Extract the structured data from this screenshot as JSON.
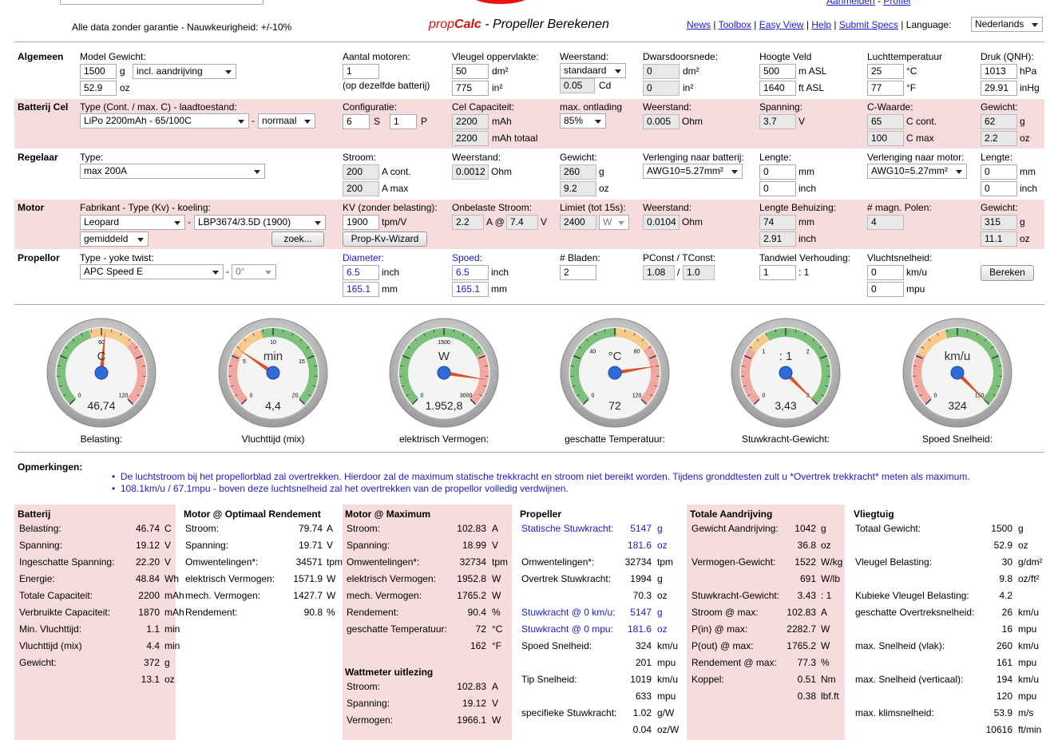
{
  "header": {
    "disclaimer": "Alle data zonder garantie - Nauwkeurigheid: +/-10%",
    "brand_prop": "prop",
    "brand_calc": "Calc",
    "brand_sub": " - Propeller Berekenen",
    "nav": [
      "News",
      "Toolbox",
      "Easy View",
      "Help",
      "Submit Specs"
    ],
    "language_label": "Language:",
    "language": "Nederlands",
    "top_links": [
      "Aanmelden",
      "Profiel"
    ],
    "top_sep": " - "
  },
  "rows": {
    "algemeen": {
      "title": "Algemeen",
      "model_gewicht_label": "Model Gewicht:",
      "gewicht_g": "1500",
      "unit_g": "g",
      "incl_select": "incl. aandrijving",
      "gewicht_oz": "52.9",
      "unit_oz": "oz",
      "aantal_motoren_label": "Aantal motoren:",
      "aantal_motoren": "1",
      "aantal_note": "(op dezelfde batterij)",
      "vleugel_label": "Vleugel oppervlakte:",
      "vleugel_dm": "50",
      "unit_dm2": "dm²",
      "vleugel_in": "775",
      "unit_in2": "in²",
      "weerstand_label": "Weerstand:",
      "weerstand_select": "standaard",
      "cd": "0.05",
      "unit_cd": "Cd",
      "dwars_label": "Dwarsdoorsnede:",
      "dwars_dm": "0",
      "dwars_in": "0",
      "hoogte_label": "Hoogte Veld",
      "hoogte_m": "500",
      "unit_masl": "m ASL",
      "hoogte_ft": "1640",
      "unit_ftasl": "ft ASL",
      "temp_label": "Luchttemperatuur",
      "temp_c": "25",
      "unit_c": "°C",
      "temp_f": "77",
      "unit_f": "°F",
      "druk_label": "Druk (QNH):",
      "druk_hpa": "1013",
      "unit_hpa": "hPa",
      "druk_inhg": "29.91",
      "unit_inhg": "inHg"
    },
    "batterij": {
      "title": "Batterij Cel",
      "type_label": "Type (Cont. / max. C) - laadtoestand:",
      "type_select": "LiPo 2200mAh - 65/100C",
      "dash": "-",
      "laad_select": "normaal",
      "config_label": "Configuratie:",
      "config_s": "6",
      "unit_s": "S",
      "config_p": "1",
      "unit_p": "P",
      "cap_label": "Cel Capaciteit:",
      "cap": "2200",
      "unit_mah": "mAh",
      "cap_totaal": "2200",
      "unit_mah_totaal": "mAh totaal",
      "ontlading_label": "max. ontlading",
      "ontlading_select": "85%",
      "weerstand_label": "Weerstand:",
      "weerstand": "0.005",
      "unit_ohm": "Ohm",
      "spanning_label": "Spanning:",
      "spanning": "3.7",
      "unit_v": "V",
      "cwaarde_label": "C-Waarde:",
      "c_cont": "65",
      "unit_c_cont": "C cont.",
      "c_max": "100",
      "unit_c_max": "C max",
      "gewicht_label": "Gewicht:",
      "gewicht_g": "62",
      "unit_g": "g",
      "gewicht_oz": "2.2",
      "unit_oz": "oz"
    },
    "regelaar": {
      "title": "Regelaar",
      "type_label": "Type:",
      "type_select": "max 200A",
      "stroom_label": "Stroom:",
      "stroom_cont": "200",
      "unit_acont": "A cont.",
      "stroom_max": "200",
      "unit_amax": "A max",
      "weerstand_label": "Weerstand:",
      "weerstand": "0.0012",
      "unit_ohm": "Ohm",
      "gewicht_label": "Gewicht:",
      "gewicht_g": "260",
      "unit_g": "g",
      "gewicht_oz": "9.2",
      "unit_oz": "oz",
      "verl_bat_label": "Verlenging naar batterij:",
      "verl_bat_select": "AWG10=5.27mm²",
      "lengte_label": "Lengte:",
      "lengte_mm": "0",
      "unit_mm": "mm",
      "lengte_inch": "0",
      "unit_inch": "inch",
      "verl_mot_label": "Verlenging naar motor:",
      "verl_mot_select": "AWG10=5.27mm²",
      "lengte2_label": "Lengte:",
      "lengte2_mm": "0",
      "lengte2_inch": "0"
    },
    "motor": {
      "title": "Motor",
      "fab_label": "Fabrikant - Type (Kv) - koeling:",
      "fab_select": "Leopard",
      "dash": "-",
      "type_select": "LBP3674/3.5D (1900)",
      "koeling_select": "gemiddeld",
      "zoek_button": "zoek...",
      "kv_label": "KV (zonder belasting):",
      "kv": "1900",
      "unit_tpmv": "tpm/V",
      "kv_button": "Prop-Kv-Wizard",
      "onbelast_label": "Onbelaste Stroom:",
      "onbelast_a": "2.2",
      "unit_a_at": "A @",
      "onbelast_v": "7.4",
      "unit_v": "V",
      "limiet_label": "Limiet (tot 15s):",
      "limiet": "2400",
      "limiet_unit_select": "W",
      "weerstand_label": "Weerstand:",
      "weerstand": "0.0104",
      "unit_ohm": "Ohm",
      "lengte_label": "Lengte Behuizing:",
      "lengte_mm": "74",
      "unit_mm": "mm",
      "lengte_inch": "2.91",
      "unit_inch": "inch",
      "polen_label": "# magn. Polen:",
      "polen": "4",
      "gewicht_label": "Gewicht:",
      "gewicht_g": "315",
      "unit_g": "g",
      "gewicht_oz": "11.1",
      "unit_oz": "oz"
    },
    "propellor": {
      "title": "Propellor",
      "type_label": "Type - yoke twist:",
      "type_select": "APC Speed E",
      "dash": "-",
      "twist_select": "0°",
      "diameter_label": "Diameter:",
      "diameter_inch": "6.5",
      "unit_inch": "inch",
      "diameter_mm": "165.1",
      "unit_mm": "mm",
      "spoed_label": "Spoed:",
      "spoed_inch": "6.5",
      "spoed_mm": "165.1",
      "bladen_label": "# Bladen:",
      "bladen": "2",
      "pconst_label": "PConst / TConst:",
      "pconst": "1.08",
      "slash": "/",
      "tconst": "1.0",
      "tandwiel_label": "Tandwiel Verhouding:",
      "tandwiel": "1",
      "unit_ratio": ": 1",
      "vlucht_label": "Vluchtsnelheid:",
      "vlucht_kmu": "0",
      "unit_kmu": "km/u",
      "vlucht_mpu": "0",
      "unit_mpu": "mpu",
      "bereken_button": "Bereken"
    }
  },
  "gauges": [
    {
      "unit": "C",
      "value": 46.74,
      "display": "46,74",
      "min": "0",
      "max": "120",
      "mid": "60",
      "caption": "Belasting:"
    },
    {
      "unit": "min",
      "value": 4.4,
      "display": "4,4",
      "min": "0",
      "max": "20",
      "mid": "10",
      "t1": "5",
      "t2": "15",
      "caption": "Vluchttijd (mix)"
    },
    {
      "unit": "W",
      "value": 1952.8,
      "display": "1.952,8",
      "min": "0",
      "max": "3000",
      "mid": "1500",
      "caption": "elektrisch Vermogen:"
    },
    {
      "unit": "°C",
      "value": 72,
      "display": "72",
      "min": "0",
      "max": "120",
      "t1": "40",
      "t2": "80",
      "caption": "geschatte Temperatuur:"
    },
    {
      "unit": ": 1",
      "value": 3.43,
      "display": "3,43",
      "min": "0",
      "max": "3",
      "t1": "1",
      "t2": "2",
      "caption": "Stuwkracht-Gewicht:"
    },
    {
      "unit": "km/u",
      "value": 324,
      "display": "324",
      "min": "0",
      "max": "150",
      "caption": "Spoed Snelheid:"
    }
  ],
  "remarks": {
    "title": "Opmerkingen:",
    "items": [
      "De luchtstroom bij het propellorblad zal overtrekken. Hierdoor zal de maximum statische trekkracht en stroom niet bereikt worden. Tijdens gronddtesten zult u *Overtrek trekkracht* meten als maximum.",
      "108.1km/u / 67.1mpu - boven deze luchtsnelheid zal het overtrekken van de propellor volledig verdwijnen."
    ]
  },
  "results": {
    "batterij": {
      "title": "Batterij",
      "rows": [
        [
          "Belasting:",
          "46.74",
          "C"
        ],
        [
          "Spanning:",
          "19.12",
          "V"
        ],
        [
          "Ingeschatte Spanning:",
          "22.20",
          "V"
        ],
        [
          "Energie:",
          "48.84",
          "Wh"
        ],
        [
          "Totale Capaciteit:",
          "2200",
          "mAh"
        ],
        [
          "Verbruikte Capaciteit:",
          "1870",
          "mAh"
        ],
        [
          "Min. Vluchttijd:",
          "1.1",
          "min"
        ],
        [
          "Vluchttijd (mix)",
          "4.4",
          "min"
        ],
        [
          "Gewicht:",
          "372",
          "g"
        ],
        [
          "",
          "13.1",
          "oz"
        ]
      ]
    },
    "motor_opt": {
      "title": "Motor @ Optimaal Rendement",
      "rows": [
        [
          "Stroom:",
          "79.74",
          "A"
        ],
        [
          "Spanning:",
          "19.71",
          "V"
        ],
        [
          "Omwentelingen*:",
          "34571",
          "tpm"
        ],
        [
          "elektrisch Vermogen:",
          "1571.9",
          "W"
        ],
        [
          "mech. Vermogen:",
          "1427.7",
          "W"
        ],
        [
          "Rendement:",
          "90.8",
          "%"
        ]
      ]
    },
    "motor_max": {
      "title": "Motor @ Maximum",
      "rows": [
        [
          "Stroom:",
          "102.83",
          "A"
        ],
        [
          "Spanning:",
          "18.99",
          "V"
        ],
        [
          "Omwentelingen*:",
          "32734",
          "tpm"
        ],
        [
          "elektrisch Vermogen:",
          "1952.8",
          "W"
        ],
        [
          "mech. Vermogen:",
          "1765.2",
          "W"
        ],
        [
          "Rendement:",
          "90.4",
          "%"
        ],
        [
          "geschatte Temperatuur:",
          "72",
          "°C"
        ],
        [
          "",
          "162",
          "°F"
        ]
      ]
    },
    "wattmeter": {
      "title": "Wattmeter uitlezing",
      "rows": [
        [
          "Stroom:",
          "102.83",
          "A"
        ],
        [
          "Spanning:",
          "19.12",
          "V"
        ],
        [
          "Vermogen:",
          "1966.1",
          "W"
        ]
      ]
    },
    "propeller": {
      "title": "Propeller",
      "rows": [
        [
          "Statische Stuwkracht:",
          "5147",
          "g"
        ],
        [
          "",
          "181.6",
          "oz"
        ],
        [
          "Omwentelingen*:",
          "32734",
          "tpm"
        ],
        [
          "Overtrek Stuwkracht:",
          "1994",
          "g"
        ],
        [
          "",
          "70.3",
          "oz"
        ],
        [
          "Stuwkracht @ 0 km/u:",
          "5147",
          "g"
        ],
        [
          "Stuwkracht @ 0 mpu:",
          "181.6",
          "oz"
        ],
        [
          "Spoed Snelheid:",
          "324",
          "km/u"
        ],
        [
          "",
          "201",
          "mpu"
        ],
        [
          "Tip Snelheid:",
          "1019",
          "km/u"
        ],
        [
          "",
          "633",
          "mpu"
        ],
        [
          "specifieke Stuwkracht:",
          "1.02",
          "g/W"
        ],
        [
          "",
          "0.04",
          "oz/W"
        ]
      ]
    },
    "totale": {
      "title": "Totale Aandrijving",
      "rows": [
        [
          "Gewicht Aandrijving:",
          "1042",
          "g"
        ],
        [
          "",
          "36.8",
          "oz"
        ],
        [
          "Vermogen-Gewicht:",
          "1522",
          "W/kg"
        ],
        [
          "",
          "691",
          "W/lb"
        ],
        [
          "Stuwkracht-Gewicht:",
          "3.43",
          ": 1"
        ],
        [
          "Stroom @ max:",
          "102.83",
          "A"
        ],
        [
          "P(in) @ max:",
          "2282.7",
          "W"
        ],
        [
          "P(out) @ max:",
          "1765.2",
          "W"
        ],
        [
          "Rendement @ max:",
          "77.3",
          "%"
        ],
        [
          "Koppel:",
          "0.51",
          "Nm"
        ],
        [
          "",
          "0.38",
          "lbf.ft"
        ]
      ]
    },
    "vliegtuig": {
      "title": "Vliegtuig",
      "rows": [
        [
          "Totaal Gewicht:",
          "1500",
          "g"
        ],
        [
          "",
          "52.9",
          "oz"
        ],
        [
          "Vleugel Belasting:",
          "30",
          "g/dm²"
        ],
        [
          "",
          "9.8",
          "oz/ft²"
        ],
        [
          "Kubieke Vleugel Belasting:",
          "4.2",
          ""
        ],
        [
          "geschatte Overtreksnelheid:",
          "26",
          "km/u"
        ],
        [
          "",
          "16",
          "mpu"
        ],
        [
          "max. Snelheid (vlak):",
          "260",
          "km/u"
        ],
        [
          "",
          "161",
          "mpu"
        ],
        [
          "max. Snelheid (verticaal):",
          "194",
          "km/u"
        ],
        [
          "",
          "120",
          "mpu"
        ],
        [
          "max. klimsnelheid:",
          "53.9",
          "m/s"
        ],
        [
          "",
          "10616",
          "ft/min"
        ]
      ]
    }
  }
}
